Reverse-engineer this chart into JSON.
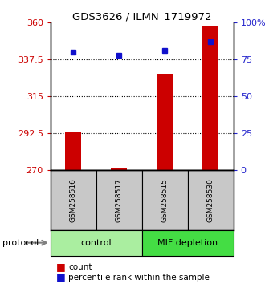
{
  "title": "GDS3626 / ILMN_1719972",
  "samples": [
    "GSM258516",
    "GSM258517",
    "GSM258515",
    "GSM258530"
  ],
  "counts": [
    293,
    271,
    329,
    358
  ],
  "percentile_ranks": [
    80,
    78,
    81,
    87
  ],
  "ymin": 270,
  "ymax": 360,
  "yticks": [
    270,
    292.5,
    315,
    337.5,
    360
  ],
  "ytick_labels": [
    "270",
    "292.5",
    "315",
    "337.5",
    "360"
  ],
  "right_yticks": [
    0,
    25,
    50,
    75,
    100
  ],
  "right_ytick_labels": [
    "0",
    "25",
    "50",
    "75",
    "100%"
  ],
  "bar_color": "#CC0000",
  "dot_color": "#1111CC",
  "left_tick_color": "#CC0000",
  "right_tick_color": "#2222CC",
  "sample_box_color": "#C8C8C8",
  "control_color": "#AAEEA0",
  "mif_color": "#44DD44",
  "bar_width": 0.35
}
